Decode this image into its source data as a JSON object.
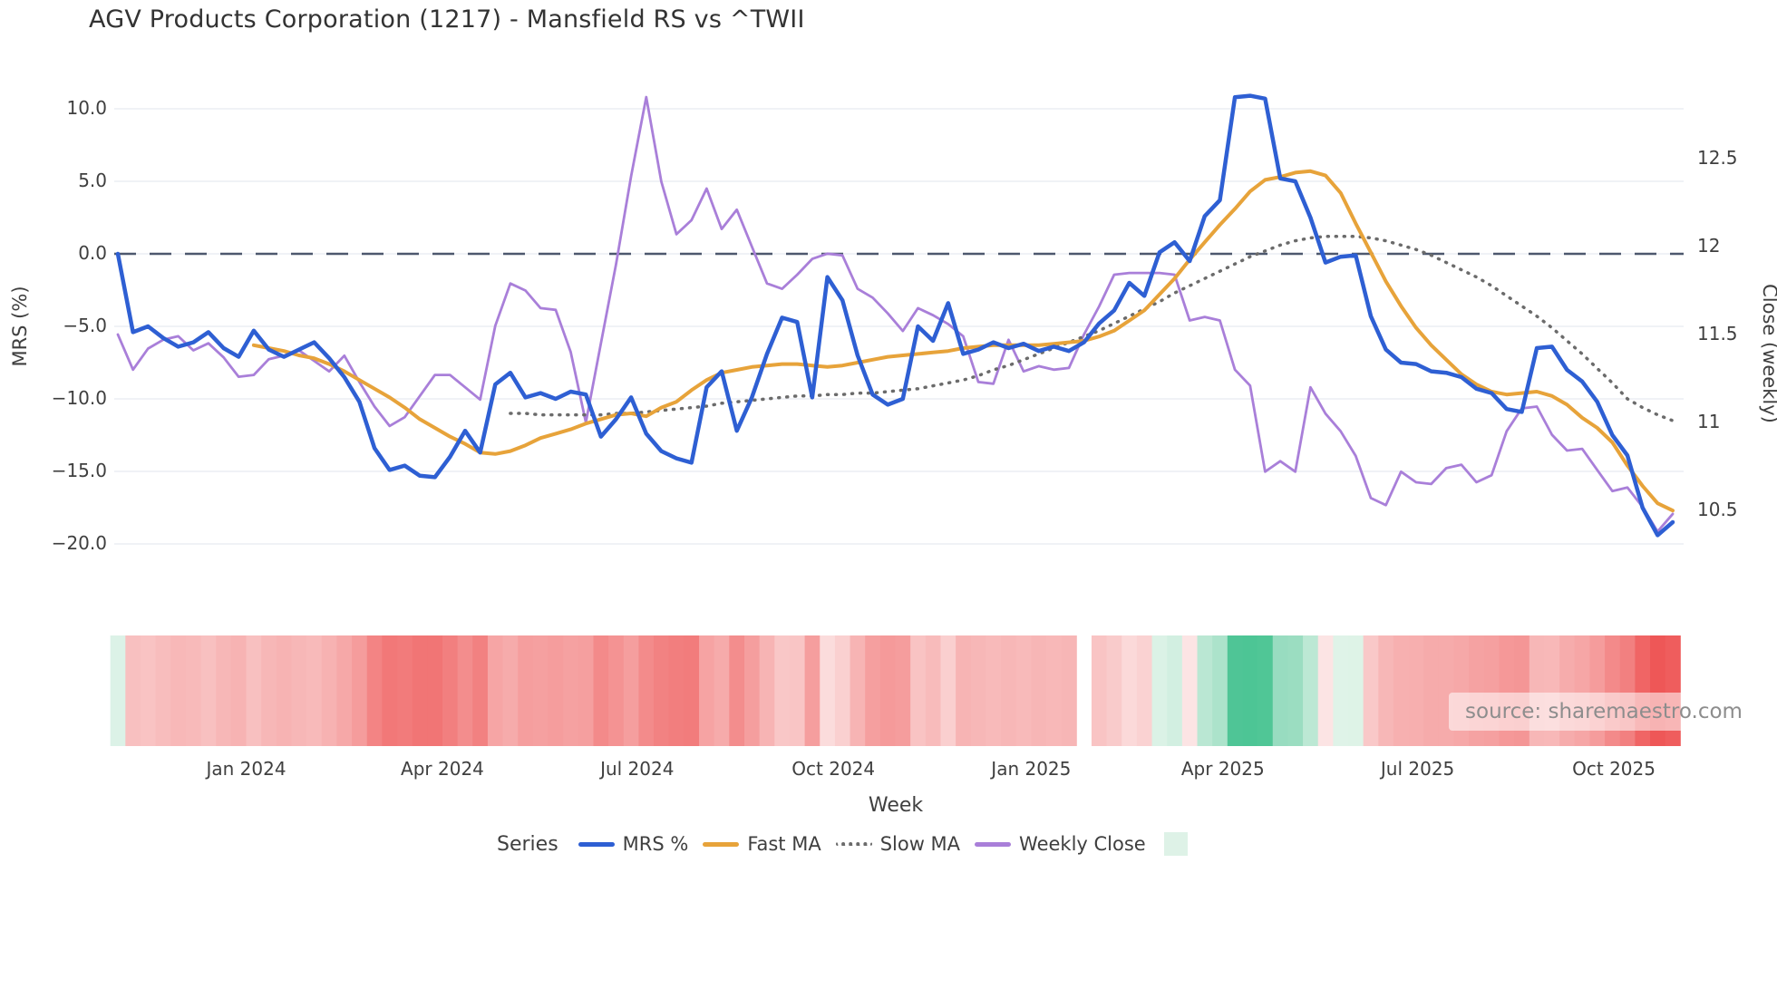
{
  "title": "AGV Products Corporation (1217) - Mansfield RS vs ^TWII",
  "source_note": "source: sharemaestro.com",
  "axes": {
    "left": {
      "title": "MRS (%)",
      "tick_labels": [
        "10.0",
        "5.0",
        "0.0",
        "−5.0",
        "−10.0",
        "−15.0",
        "−20.0"
      ],
      "tick_values": [
        10,
        5,
        0,
        -5,
        -10,
        -15,
        -20
      ]
    },
    "right": {
      "title": "Close (weekly)",
      "tick_labels": [
        "12.5",
        "12",
        "11.5",
        "11",
        "10.5"
      ],
      "tick_values": [
        12.5,
        12,
        11.5,
        11,
        10.5
      ]
    },
    "x": {
      "title": "Week",
      "tick_labels": [
        "Jan 2024",
        "Apr 2024",
        "Jul 2024",
        "Oct 2024",
        "Jan 2025",
        "Apr 2025",
        "Jul 2025",
        "Oct 2025"
      ],
      "tick_weeks": [
        8.5,
        21.5,
        34.4,
        47.4,
        60.5,
        73.2,
        86.1,
        99.1
      ]
    }
  },
  "legend": {
    "title": "Series",
    "items": [
      {
        "label": "MRS %",
        "color": "#2e5fd3",
        "style": "solid"
      },
      {
        "label": "Fast MA",
        "color": "#e7a33a",
        "style": "solid"
      },
      {
        "label": "Slow MA",
        "color": "#6b6b6b",
        "style": "dotted"
      },
      {
        "label": "Weekly Close",
        "color": "#a97fd9",
        "style": "solid"
      },
      {
        "label": "",
        "color": "#def2e7",
        "style": "swatch"
      }
    ]
  },
  "colors": {
    "mrs_line": "#2e5fd3",
    "fast_ma_line": "#e7a33a",
    "slow_ma_line": "#6b6b6b",
    "weekly_close_line": "#a97fd9",
    "zero_dash_line": "#4d586e",
    "gridline": "#eceef3",
    "heat_red_strong": "#ee5252",
    "heat_red_weak": "#fce8e8",
    "heat_green_strong": "#48c392",
    "heat_green_weak": "#dff3e8"
  },
  "chart_data": {
    "type": "line",
    "title": "AGV Products Corporation (1217) - Mansfield RS vs ^TWII",
    "xlabel": "Week",
    "ylabel_left": "MRS (%)",
    "ylabel_right": "Close (weekly)",
    "x_unit": "weekly, Nov 2023 - Nov 2025",
    "weeks_total": 104,
    "ylim_left": [
      -22,
      12
    ],
    "ylim_right": [
      10.3,
      12.95
    ],
    "zero_reference_line": 0,
    "legend_position": "bottom",
    "grid": "horizontal-only",
    "series": [
      {
        "name": "MRS %",
        "axis": "left",
        "color": "#2e5fd3",
        "dash": "solid",
        "width": 4.5,
        "start_week": 0,
        "values": [
          0.0,
          -5.4,
          -5.0,
          -5.8,
          -6.4,
          -6.1,
          -5.4,
          -6.5,
          -7.1,
          -5.3,
          -6.6,
          -7.1,
          -6.6,
          -6.1,
          -7.2,
          -8.5,
          -10.2,
          -13.4,
          -14.9,
          -14.6,
          -15.3,
          -15.4,
          -14.0,
          -12.2,
          -13.7,
          -9.0,
          -8.2,
          -9.9,
          -9.6,
          -10.0,
          -9.5,
          -9.7,
          -12.6,
          -11.4,
          -9.9,
          -12.4,
          -13.6,
          -14.1,
          -14.4,
          -9.2,
          -8.1,
          -12.2,
          -9.9,
          -6.9,
          -4.4,
          -4.7,
          -9.9,
          -1.6,
          -3.2,
          -7.0,
          -9.7,
          -10.4,
          -10.0,
          -5.0,
          -6.0,
          -3.4,
          -6.9,
          -6.6,
          -6.1,
          -6.5,
          -6.2,
          -6.7,
          -6.4,
          -6.7,
          -6.1,
          -4.8,
          -3.9,
          -2.0,
          -2.9,
          0.1,
          0.8,
          -0.5,
          2.6,
          3.7,
          10.8,
          10.9,
          10.7,
          5.2,
          5.0,
          2.5,
          -0.6,
          -0.2,
          -0.1,
          -4.3,
          -6.6,
          -7.5,
          -7.6,
          -8.1,
          -8.2,
          -8.5,
          -9.3,
          -9.6,
          -10.7,
          -10.9,
          -6.5,
          -6.4,
          -8.0,
          -8.8,
          -10.2,
          -12.5,
          -13.9,
          -17.5,
          -19.4,
          -18.5
        ]
      },
      {
        "name": "Fast MA",
        "axis": "left",
        "color": "#e7a33a",
        "dash": "solid",
        "width": 4,
        "start_week": 9,
        "values": [
          -6.3,
          -6.5,
          -6.7,
          -7.0,
          -7.2,
          -7.6,
          -8.1,
          -8.7,
          -9.3,
          -9.9,
          -10.6,
          -11.4,
          -12.0,
          -12.6,
          -13.1,
          -13.7,
          -13.8,
          -13.6,
          -13.2,
          -12.7,
          -12.4,
          -12.1,
          -11.7,
          -11.4,
          -11.1,
          -11.0,
          -11.2,
          -10.6,
          -10.2,
          -9.4,
          -8.7,
          -8.2,
          -8.0,
          -7.8,
          -7.7,
          -7.6,
          -7.6,
          -7.7,
          -7.8,
          -7.7,
          -7.5,
          -7.3,
          -7.1,
          -7.0,
          -6.9,
          -6.8,
          -6.7,
          -6.5,
          -6.4,
          -6.3,
          -6.3,
          -6.3,
          -6.3,
          -6.2,
          -6.1,
          -6.0,
          -5.7,
          -5.3,
          -4.6,
          -3.9,
          -2.8,
          -1.7,
          -0.4,
          0.8,
          2.0,
          3.1,
          4.3,
          5.1,
          5.3,
          5.6,
          5.7,
          5.4,
          4.2,
          2.1,
          0.1,
          -1.9,
          -3.6,
          -5.1,
          -6.3,
          -7.3,
          -8.3,
          -9.0,
          -9.5,
          -9.7,
          -9.6,
          -9.5,
          -9.8,
          -10.4,
          -11.3,
          -12.0,
          -13.0,
          -14.6,
          -16.0,
          -17.2,
          -17.7
        ]
      },
      {
        "name": "Slow MA",
        "axis": "left",
        "color": "#6b6b6b",
        "dash": "dotted",
        "width": 3.5,
        "start_week": 26,
        "values": [
          -11.0,
          -11.0,
          -11.1,
          -11.1,
          -11.1,
          -11.1,
          -11.1,
          -11.0,
          -11.0,
          -10.9,
          -10.8,
          -10.7,
          -10.6,
          -10.5,
          -10.3,
          -10.2,
          -10.1,
          -10.0,
          -9.9,
          -9.8,
          -9.8,
          -9.7,
          -9.7,
          -9.6,
          -9.6,
          -9.5,
          -9.4,
          -9.3,
          -9.1,
          -8.9,
          -8.7,
          -8.4,
          -8.0,
          -7.7,
          -7.3,
          -6.9,
          -6.5,
          -6.1,
          -5.7,
          -5.3,
          -4.8,
          -4.3,
          -3.8,
          -3.3,
          -2.7,
          -2.2,
          -1.7,
          -1.2,
          -0.7,
          -0.2,
          0.2,
          0.6,
          0.9,
          1.1,
          1.2,
          1.2,
          1.2,
          1.1,
          0.9,
          0.6,
          0.3,
          -0.1,
          -0.6,
          -1.1,
          -1.6,
          -2.2,
          -2.9,
          -3.6,
          -4.3,
          -5.1,
          -6.0,
          -6.9,
          -7.9,
          -8.9,
          -10.0,
          -10.6,
          -11.1,
          -11.5
        ]
      },
      {
        "name": "Weekly Close",
        "axis": "right",
        "color": "#a97fd9",
        "dash": "solid",
        "width": 2.8,
        "start_week": 0,
        "values": [
          11.5,
          11.3,
          11.42,
          11.47,
          11.49,
          11.41,
          11.45,
          11.37,
          11.26,
          11.27,
          11.36,
          11.38,
          11.41,
          11.35,
          11.29,
          11.38,
          11.23,
          11.09,
          10.98,
          11.03,
          11.15,
          11.27,
          11.27,
          11.2,
          11.13,
          11.55,
          11.79,
          11.75,
          11.65,
          11.64,
          11.4,
          11.0,
          11.45,
          11.9,
          12.4,
          12.85,
          12.37,
          12.07,
          12.15,
          12.33,
          12.1,
          12.21,
          12.0,
          11.79,
          11.76,
          11.84,
          11.93,
          11.96,
          11.95,
          11.76,
          11.71,
          11.62,
          11.52,
          11.65,
          11.61,
          11.56,
          11.49,
          11.23,
          11.22,
          11.47,
          11.29,
          11.32,
          11.3,
          11.31,
          11.5,
          11.66,
          11.84,
          11.85,
          11.85,
          11.85,
          11.84,
          11.58,
          11.6,
          11.58,
          11.3,
          11.21,
          10.72,
          10.78,
          10.72,
          11.2,
          11.05,
          10.95,
          10.81,
          10.57,
          10.53,
          10.72,
          10.66,
          10.65,
          10.74,
          10.76,
          10.66,
          10.7,
          10.95,
          11.08,
          11.09,
          10.93,
          10.84,
          10.85,
          10.73,
          10.61,
          10.63,
          10.52,
          10.38,
          10.48
        ]
      }
    ],
    "heatmap": {
      "description": "weekly color strip derived from MRS %: red intensity = |mrs|/20 when negative, green intensity = mrs/11.5 when positive",
      "source_series": "MRS %",
      "gap_weeks": [
        64
      ],
      "negative_strong": "#ee5252",
      "negative_weak": "#fce8e8",
      "positive_strong": "#48c392",
      "positive_weak": "#dff3e8"
    }
  }
}
